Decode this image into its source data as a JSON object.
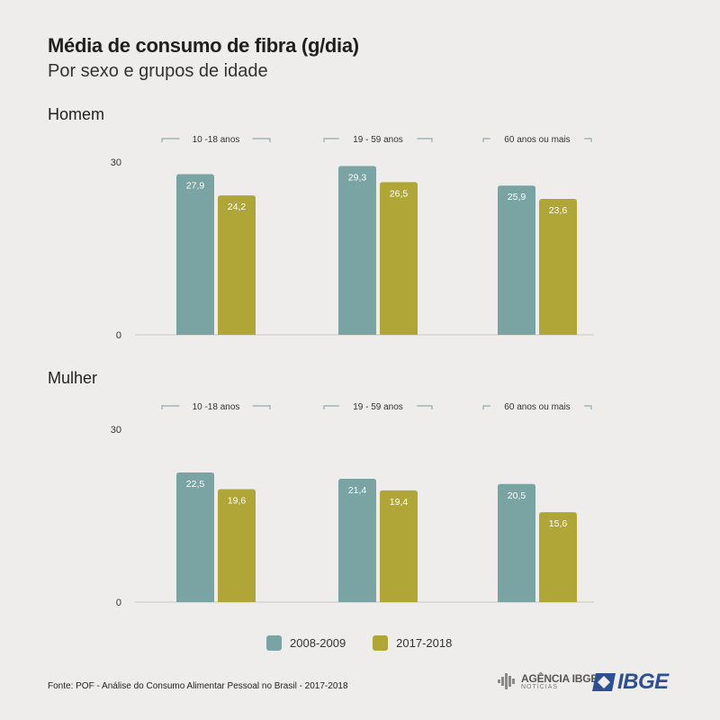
{
  "header": {
    "title": "Média de consumo de fibra (g/dia)",
    "subtitle": "Por sexo e grupos de idade"
  },
  "colors": {
    "s1": "#7aa4a3",
    "s2": "#b0a637"
  },
  "chart_data": [
    {
      "type": "bar",
      "panel": "Homem",
      "categories": [
        "10 -18 anos",
        "19 - 59 anos",
        "60 anos ou mais"
      ],
      "series": [
        {
          "name": "2008-2009",
          "values": [
            27.9,
            29.3,
            25.9
          ],
          "labels": [
            "27,9",
            "29,3",
            "25,9"
          ]
        },
        {
          "name": "2017-2018",
          "values": [
            24.2,
            26.5,
            23.6
          ],
          "labels": [
            "24,2",
            "26,5",
            "23,6"
          ]
        }
      ],
      "yticks": [
        "0",
        "30"
      ],
      "ylim": [
        0,
        30
      ]
    },
    {
      "type": "bar",
      "panel": "Mulher",
      "categories": [
        "10 -18 anos",
        "19 - 59 anos",
        "60 anos ou mais"
      ],
      "series": [
        {
          "name": "2008-2009",
          "values": [
            22.5,
            21.4,
            20.5
          ],
          "labels": [
            "22,5",
            "21,4",
            "20,5"
          ]
        },
        {
          "name": "2017-2018",
          "values": [
            19.6,
            19.4,
            15.6
          ],
          "labels": [
            "19,6",
            "19,4",
            "15,6"
          ]
        }
      ],
      "yticks": [
        "0",
        "30"
      ],
      "ylim": [
        0,
        30
      ]
    }
  ],
  "legend": [
    {
      "label": "2008-2009"
    },
    {
      "label": "2017-2018"
    }
  ],
  "footer": {
    "source": "Fonte: POF - Análise do Consumo Alimentar Pessoal no Brasil - 2017-2018",
    "agencia_line1": "AGÊNCIA IBGE",
    "agencia_line2": "NOTÍCIAS",
    "ibge": "IBGE"
  }
}
